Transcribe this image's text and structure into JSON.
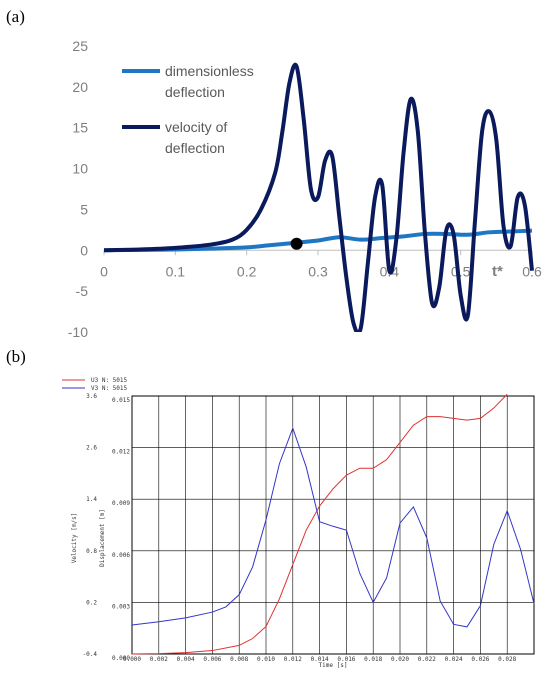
{
  "labels": {
    "a": "(a)",
    "b": "(b)"
  },
  "chart_data": [
    {
      "type": "line",
      "panel": "(a)",
      "xlim": [
        0,
        0.6
      ],
      "ylim": [
        -10,
        25
      ],
      "x_ticks": [
        "0",
        "0.1",
        "0.2",
        "0.3",
        "0.4",
        "0.5",
        "0.6"
      ],
      "y_ticks": [
        "25",
        "20",
        "15",
        "10",
        "5",
        "0",
        "-5",
        "-10"
      ],
      "x_tick_values": [
        0,
        0.1,
        0.2,
        0.3,
        0.4,
        0.5,
        0.6
      ],
      "y_tick_values": [
        25,
        20,
        15,
        10,
        5,
        0,
        -5,
        -10
      ],
      "axis_annotation": "t*",
      "legend_placement": "top-left",
      "grid": false,
      "series": [
        {
          "name": "dimensionless deflection",
          "legend_lines": [
            "dimensionless",
            "deflection"
          ],
          "color": "#1f77c4",
          "x": [
            0,
            0.05,
            0.1,
            0.15,
            0.2,
            0.23,
            0.26,
            0.3,
            0.33,
            0.36,
            0.39,
            0.42,
            0.45,
            0.48,
            0.51,
            0.54,
            0.57,
            0.6
          ],
          "y": [
            0,
            0.05,
            0.1,
            0.2,
            0.35,
            0.6,
            0.85,
            1.2,
            1.6,
            1.3,
            1.5,
            1.7,
            2.0,
            2.0,
            1.9,
            2.2,
            2.3,
            2.4
          ]
        },
        {
          "name": "velocity of deflection",
          "legend_lines": [
            "velocity of",
            "deflection"
          ],
          "color": "#0a1a5c",
          "x": [
            0,
            0.05,
            0.1,
            0.15,
            0.18,
            0.2,
            0.22,
            0.24,
            0.25,
            0.26,
            0.27,
            0.28,
            0.29,
            0.3,
            0.31,
            0.32,
            0.33,
            0.34,
            0.35,
            0.36,
            0.37,
            0.38,
            0.39,
            0.4,
            0.41,
            0.42,
            0.43,
            0.44,
            0.45,
            0.46,
            0.47,
            0.48,
            0.49,
            0.5,
            0.51,
            0.52,
            0.53,
            0.54,
            0.55,
            0.56,
            0.57,
            0.58,
            0.59,
            0.6
          ],
          "y": [
            0,
            0.1,
            0.3,
            0.7,
            1.3,
            2.5,
            5.0,
            9.5,
            14.5,
            20.5,
            22.5,
            16.0,
            7.5,
            6.5,
            11.0,
            11.5,
            4.0,
            -3.5,
            -9.0,
            -9.5,
            -1.5,
            6.5,
            8.0,
            -2.5,
            1.5,
            12.0,
            18.5,
            14.5,
            2.0,
            -6.5,
            -4.5,
            2.5,
            2.0,
            -5.5,
            -8.0,
            3.5,
            14.5,
            17.0,
            13.5,
            3.0,
            0.5,
            6.5,
            5.5,
            -2.5
          ]
        }
      ],
      "highlight_point": {
        "x": 0.27,
        "y": 0.8
      }
    },
    {
      "type": "line",
      "panel": "(b)",
      "xlabel": "Time [s]",
      "ylabel_left": "Velocity [m/s]",
      "ylabel_right": "Displacement [m]",
      "xlim": [
        0,
        0.03
      ],
      "ylim_left": [
        -0.4,
        3.6
      ],
      "ylim_right": [
        0,
        0.015
      ],
      "x_ticks": [
        "0.000",
        "0.002",
        "0.004",
        "0.006",
        "0.008",
        "0.010",
        "0.012",
        "0.014",
        "0.016",
        "0.018",
        "0.020",
        "0.022",
        "0.024",
        "0.026",
        "0.028"
      ],
      "y_ticks_left": [
        "3.6",
        "2.6",
        "1.4",
        "0.8",
        "0.2",
        "-0.4"
      ],
      "y_ticks_right": [
        "0.015",
        "0.012",
        "0.009",
        "0.006",
        "0.003",
        "0.000"
      ],
      "grid": true,
      "legend_placement": "top-left",
      "series": [
        {
          "name": "U3 N: 5015",
          "color": "#e03030",
          "axis": "right",
          "x": [
            0,
            0.002,
            0.004,
            0.006,
            0.008,
            0.009,
            0.01,
            0.011,
            0.012,
            0.013,
            0.014,
            0.015,
            0.016,
            0.017,
            0.018,
            0.019,
            0.02,
            0.021,
            0.022,
            0.023,
            0.024,
            0.025,
            0.026,
            0.027,
            0.028
          ],
          "y": [
            0,
            2e-05,
            8e-05,
            0.0002,
            0.0005,
            0.0009,
            0.0016,
            0.0032,
            0.0052,
            0.0072,
            0.0086,
            0.0096,
            0.0104,
            0.0108,
            0.0108,
            0.0113,
            0.0123,
            0.0133,
            0.0138,
            0.0138,
            0.0137,
            0.0136,
            0.0137,
            0.0143,
            0.0151
          ]
        },
        {
          "name": "V3 N: 5015",
          "color": "#3535c8",
          "axis": "left",
          "x": [
            0,
            0.002,
            0.004,
            0.006,
            0.007,
            0.008,
            0.009,
            0.01,
            0.011,
            0.012,
            0.013,
            0.014,
            0.015,
            0.016,
            0.017,
            0.018,
            0.019,
            0.02,
            0.021,
            0.022,
            0.023,
            0.024,
            0.025,
            0.026,
            0.027,
            0.028,
            0.029,
            0.03
          ],
          "y": [
            0.05,
            0.1,
            0.16,
            0.25,
            0.33,
            0.52,
            0.95,
            1.68,
            2.55,
            3.1,
            2.5,
            1.65,
            1.58,
            1.52,
            0.85,
            0.4,
            0.78,
            1.63,
            1.88,
            1.4,
            0.42,
            0.06,
            0.02,
            0.35,
            1.3,
            1.82,
            1.22,
            0.38
          ]
        }
      ]
    }
  ]
}
